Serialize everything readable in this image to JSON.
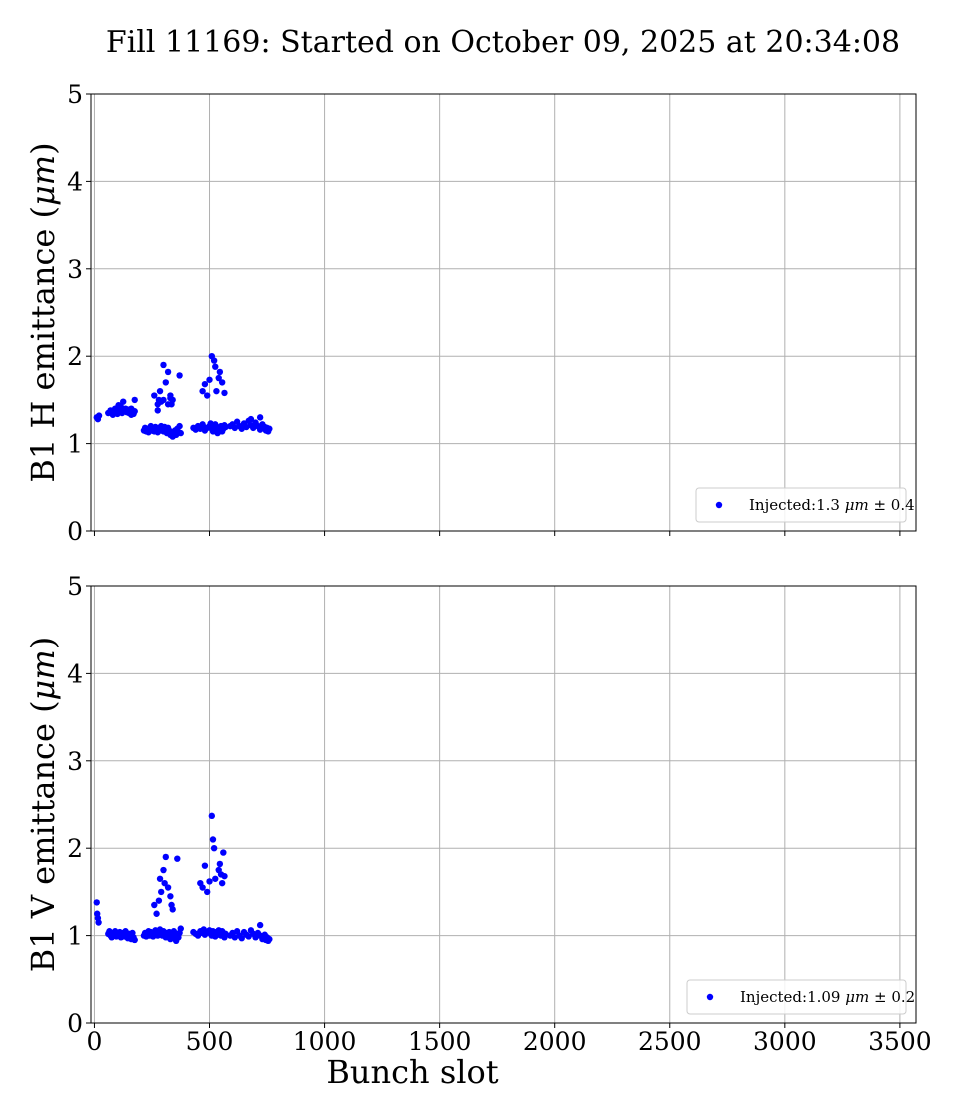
{
  "title": "Fill 11169: Started on October 09, 2025 at 20:34:08",
  "colors": {
    "points": "#0000ff",
    "grid": "#b0b0b0",
    "axis": "#000000",
    "legend_border": "#cccccc"
  },
  "chart_data": [
    {
      "type": "scatter",
      "ylabel_text": "B1 H emittance (",
      "ylabel_unit": "μm",
      "ylabel_close": ")",
      "xlabel": "",
      "xlim": [
        -15,
        3570
      ],
      "ylim": [
        0,
        5
      ],
      "xticks": [
        0,
        500,
        1000,
        1500,
        2000,
        2500,
        3000,
        3500
      ],
      "yticks": [
        0,
        1,
        2,
        3,
        4,
        5
      ],
      "show_xtick_labels": false,
      "grid": true,
      "legend_position": "bottom-right",
      "legend": {
        "prefix": "Injected:",
        "value": "1.3",
        "unit": "μm",
        "pm": "±",
        "spread": "0.4"
      },
      "series": [
        {
          "color": "#0000ff",
          "x": [
            10,
            15,
            20,
            60,
            70,
            80,
            90,
            95,
            100,
            110,
            115,
            120,
            130,
            135,
            140,
            145,
            150,
            155,
            160,
            165,
            170,
            175,
            125,
            105,
            175,
            215,
            220,
            225,
            230,
            235,
            240,
            245,
            250,
            255,
            260,
            265,
            270,
            275,
            280,
            285,
            290,
            295,
            300,
            305,
            310,
            315,
            320,
            325,
            330,
            335,
            340,
            345,
            350,
            355,
            360,
            365,
            370,
            375,
            260,
            275,
            280,
            290,
            300,
            310,
            320,
            330,
            335,
            340,
            370,
            430,
            440,
            450,
            460,
            470,
            475,
            480,
            490,
            500,
            505,
            510,
            515,
            520,
            525,
            530,
            535,
            540,
            545,
            550,
            555,
            560,
            565,
            570,
            470,
            480,
            490,
            500,
            510,
            520,
            525,
            530,
            540,
            545,
            555,
            565,
            590,
            600,
            610,
            620,
            630,
            640,
            650,
            660,
            670,
            680,
            690,
            700,
            710,
            720,
            730,
            740,
            745,
            750,
            755,
            760,
            720,
            680,
            160,
            275,
            285,
            300,
            320,
            330
          ],
          "y": [
            1.3,
            1.28,
            1.32,
            1.35,
            1.38,
            1.33,
            1.4,
            1.36,
            1.34,
            1.38,
            1.42,
            1.35,
            1.37,
            1.4,
            1.36,
            1.39,
            1.35,
            1.38,
            1.33,
            1.36,
            1.34,
            1.37,
            1.48,
            1.44,
            1.5,
            1.15,
            1.18,
            1.14,
            1.17,
            1.13,
            1.16,
            1.2,
            1.15,
            1.18,
            1.14,
            1.19,
            1.16,
            1.13,
            1.18,
            1.15,
            1.2,
            1.17,
            1.14,
            1.19,
            1.16,
            1.12,
            1.18,
            1.15,
            1.1,
            1.13,
            1.08,
            1.12,
            1.15,
            1.1,
            1.17,
            1.13,
            1.2,
            1.12,
            1.55,
            1.45,
            1.5,
            1.48,
            1.9,
            1.7,
            1.82,
            1.55,
            1.45,
            1.5,
            1.78,
            1.18,
            1.16,
            1.2,
            1.17,
            1.22,
            1.19,
            1.15,
            1.18,
            1.2,
            1.23,
            1.17,
            1.14,
            1.19,
            1.22,
            1.16,
            1.12,
            1.18,
            1.15,
            1.2,
            1.14,
            1.17,
            1.21,
            1.19,
            1.6,
            1.68,
            1.55,
            1.73,
            2.0,
            1.95,
            1.88,
            1.6,
            1.75,
            1.82,
            1.7,
            1.58,
            1.2,
            1.22,
            1.18,
            1.25,
            1.2,
            1.17,
            1.23,
            1.19,
            1.26,
            1.21,
            1.18,
            1.24,
            1.2,
            1.16,
            1.22,
            1.19,
            1.15,
            1.18,
            1.14,
            1.17,
            1.3,
            1.28,
            1.4,
            1.38,
            1.6,
            1.5,
            1.45,
            1.52
          ]
        }
      ]
    },
    {
      "type": "scatter",
      "ylabel_text": "B1 V emittance (",
      "ylabel_unit": "μm",
      "ylabel_close": ")",
      "xlabel": "Bunch slot",
      "xlim": [
        -15,
        3570
      ],
      "ylim": [
        0,
        5
      ],
      "xticks": [
        0,
        500,
        1000,
        1500,
        2000,
        2500,
        3000,
        3500
      ],
      "xtick_labels": [
        "0",
        "500",
        "1000",
        "1500",
        "2000",
        "2500",
        "3000",
        "3500"
      ],
      "yticks": [
        0,
        1,
        2,
        3,
        4,
        5
      ],
      "show_xtick_labels": true,
      "grid": true,
      "legend_position": "bottom-right",
      "legend": {
        "prefix": "Injected:",
        "value": "1.09",
        "unit": "μm",
        "pm": "±",
        "spread": "0.2"
      },
      "series": [
        {
          "color": "#0000ff",
          "x": [
            10,
            12,
            15,
            18,
            60,
            65,
            70,
            75,
            80,
            85,
            90,
            95,
            100,
            105,
            110,
            115,
            120,
            125,
            130,
            135,
            140,
            145,
            150,
            155,
            160,
            165,
            170,
            175,
            215,
            220,
            225,
            230,
            235,
            240,
            245,
            250,
            255,
            260,
            265,
            270,
            275,
            280,
            285,
            290,
            295,
            300,
            305,
            310,
            315,
            320,
            325,
            330,
            335,
            340,
            345,
            350,
            355,
            360,
            365,
            370,
            375,
            260,
            270,
            280,
            285,
            290,
            300,
            305,
            310,
            320,
            330,
            335,
            340,
            360,
            430,
            440,
            450,
            460,
            470,
            475,
            480,
            490,
            500,
            505,
            510,
            515,
            520,
            525,
            530,
            535,
            540,
            545,
            550,
            555,
            560,
            565,
            570,
            460,
            470,
            480,
            490,
            500,
            510,
            515,
            520,
            525,
            540,
            545,
            550,
            555,
            560,
            565,
            590,
            600,
            610,
            620,
            630,
            640,
            650,
            660,
            670,
            680,
            690,
            700,
            710,
            720,
            730,
            740,
            745,
            750,
            755,
            760,
            720
          ],
          "y": [
            1.38,
            1.25,
            1.2,
            1.15,
            1.02,
            1.05,
            1.0,
            0.98,
            1.03,
            1.01,
            1.05,
            0.99,
            1.02,
            1.0,
            1.04,
            0.98,
            1.01,
            1.03,
            0.99,
            1.05,
            1.0,
            0.97,
            1.02,
            1.0,
            0.96,
            1.03,
            0.98,
            0.95,
            1.0,
            1.03,
            0.99,
            1.02,
            1.05,
            1.0,
            1.04,
            1.01,
            0.99,
            1.03,
            1.06,
            1.02,
            1.0,
            1.04,
            1.07,
            1.03,
            1.0,
            1.05,
            1.02,
            0.98,
            1.03,
            1.0,
            1.04,
            0.96,
            1.01,
            0.97,
            1.05,
            1.0,
            0.94,
            1.02,
            0.98,
            1.03,
            1.08,
            1.35,
            1.25,
            1.4,
            1.65,
            1.5,
            1.75,
            1.6,
            1.9,
            1.55,
            1.45,
            1.35,
            1.3,
            1.88,
            1.04,
            1.02,
            1.0,
            1.05,
            1.03,
            1.07,
            1.01,
            1.04,
            1.06,
            1.02,
            1.0,
            1.05,
            1.03,
            0.99,
            1.04,
            1.01,
            1.06,
            1.02,
            1.0,
            1.05,
            1.03,
            0.98,
            1.02,
            1.6,
            1.55,
            1.8,
            1.5,
            1.62,
            2.37,
            2.1,
            2.0,
            1.65,
            1.75,
            1.82,
            1.7,
            1.6,
            1.95,
            1.68,
            1.0,
            1.03,
            0.98,
            1.05,
            1.0,
            0.97,
            1.04,
            1.01,
            0.99,
            1.06,
            1.02,
            0.98,
            1.03,
            1.0,
            0.96,
            1.01,
            0.95,
            0.98,
            0.94,
            0.96,
            1.12
          ]
        }
      ]
    }
  ]
}
